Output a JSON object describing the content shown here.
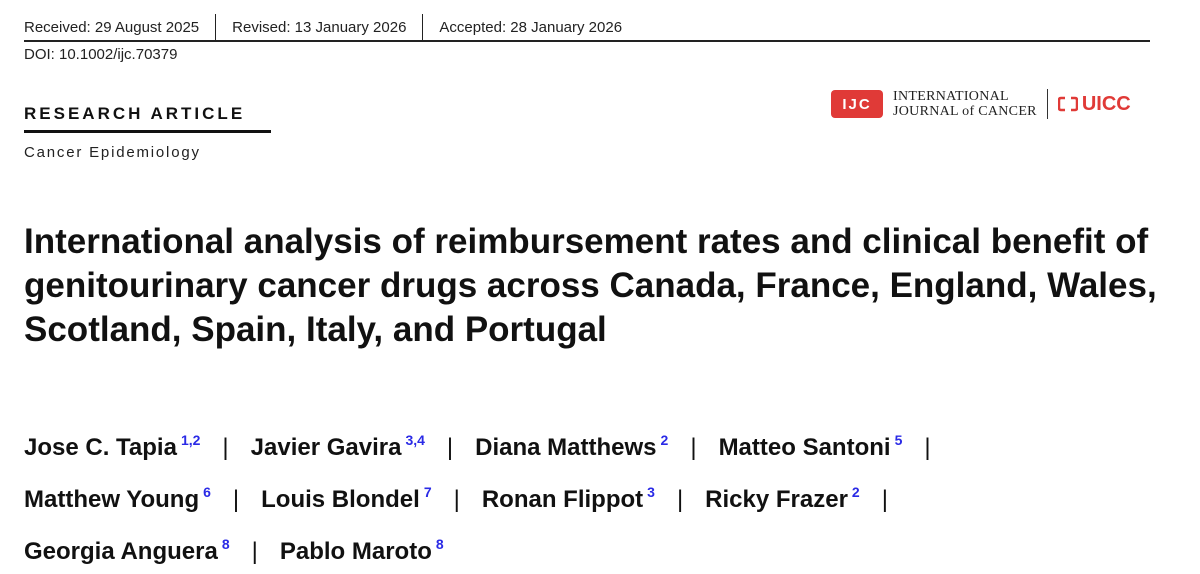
{
  "header": {
    "received": "Received: 29 August 2025",
    "revised": "Revised: 13 January 2026",
    "accepted": "Accepted: 28 January 2026",
    "doi": "DOI: 10.1002/ijc.70379"
  },
  "article": {
    "type": "RESEARCH ARTICLE",
    "subject": "Cancer Epidemiology",
    "title": "International analysis of reimbursement rates and clinical benefit of genitourinary cancer drugs across Canada, France, England, Wales, Scotland, Spain, Italy, and Portugal"
  },
  "journal": {
    "badge": "IJC",
    "name_line1": "INTERNATIONAL",
    "name_line2": "JOURNAL of CANCER",
    "partner": "UICC",
    "brand_color": "#e03a37",
    "affiliation_color": "#2a2ae6"
  },
  "authors": [
    {
      "name": "Jose C. Tapia",
      "aff": "1,2"
    },
    {
      "name": "Javier Gavira",
      "aff": "3,4"
    },
    {
      "name": "Diana Matthews",
      "aff": "2"
    },
    {
      "name": "Matteo Santoni",
      "aff": "5"
    },
    {
      "name": "Matthew Young",
      "aff": "6"
    },
    {
      "name": "Louis Blondel",
      "aff": "7"
    },
    {
      "name": "Ronan Flippot",
      "aff": "3"
    },
    {
      "name": "Ricky Frazer",
      "aff": "2"
    },
    {
      "name": "Georgia Anguera",
      "aff": "8"
    },
    {
      "name": "Pablo Maroto",
      "aff": "8"
    }
  ]
}
